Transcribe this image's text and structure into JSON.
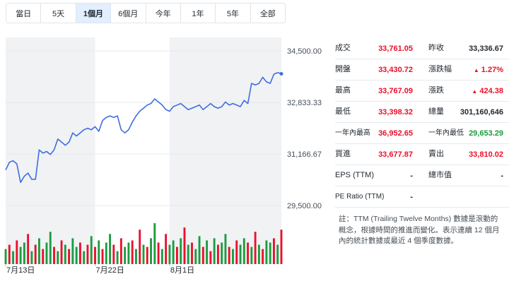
{
  "range_tabs": [
    "當日",
    "5天",
    "1個月",
    "6個月",
    "今年",
    "1年",
    "5年",
    "全部"
  ],
  "active_tab_index": 2,
  "chart_data": {
    "type": "line",
    "ylim": [
      29000,
      34800
    ],
    "y_ticks": [
      "34,500.00",
      "32,833.33",
      "31,166.67",
      "29,500.00"
    ],
    "y_tick_values": [
      34500,
      32833.33,
      31166.67,
      29500
    ],
    "x_labels": [
      "7月13日",
      "7月22日",
      "8月1日"
    ],
    "x_label_index": [
      0,
      24,
      44
    ],
    "price": [
      30650,
      30900,
      30950,
      30850,
      30250,
      30450,
      30550,
      30350,
      30350,
      31300,
      31200,
      31250,
      31150,
      31300,
      31650,
      31550,
      31450,
      31550,
      31850,
      31750,
      31850,
      31950,
      32000,
      31950,
      32050,
      31900,
      32250,
      32350,
      32400,
      32350,
      32400,
      31950,
      31850,
      31950,
      32200,
      32400,
      32550,
      32650,
      32750,
      32800,
      32950,
      32850,
      32750,
      32600,
      32550,
      32700,
      32750,
      32800,
      32700,
      32600,
      32650,
      32700,
      32750,
      32600,
      32700,
      32800,
      32700,
      32650,
      32700,
      32850,
      32750,
      32800,
      32750,
      32700,
      32900,
      32800,
      33450,
      33400,
      33450,
      33650,
      33500,
      33450,
      33750,
      33800,
      33761
    ],
    "volume": [
      0.35,
      0.45,
      0.3,
      0.55,
      0.4,
      0.5,
      0.7,
      0.3,
      0.45,
      0.6,
      0.35,
      0.5,
      0.75,
      0.4,
      0.3,
      0.55,
      0.45,
      0.35,
      0.6,
      0.4,
      0.5,
      0.3,
      0.45,
      0.65,
      0.4,
      0.55,
      0.35,
      0.5,
      0.7,
      0.45,
      0.3,
      0.6,
      0.4,
      0.5,
      0.55,
      0.35,
      0.8,
      0.45,
      0.4,
      0.6,
      0.95,
      0.5,
      0.35,
      0.7,
      0.45,
      0.55,
      0.4,
      0.6,
      0.85,
      0.45,
      0.5,
      0.35,
      0.65,
      0.4,
      0.55,
      0.3,
      0.6,
      0.45,
      0.5,
      0.7,
      0.4,
      0.35,
      0.55,
      0.45,
      0.6,
      0.5,
      0.4,
      0.75,
      0.45,
      0.35,
      0.55,
      0.5,
      0.6,
      0.45,
      0.8
    ],
    "volume_up": [
      true,
      false,
      true,
      false,
      true,
      true,
      false,
      true,
      false,
      true,
      false,
      true,
      true,
      false,
      true,
      false,
      true,
      false,
      true,
      true,
      false,
      true,
      false,
      true,
      false,
      true,
      false,
      true,
      true,
      false,
      true,
      false,
      true,
      true,
      false,
      true,
      false,
      true,
      false,
      true,
      true,
      false,
      true,
      false,
      true,
      true,
      false,
      true,
      false,
      true,
      false,
      true,
      true,
      false,
      true,
      false,
      true,
      false,
      true,
      true,
      false,
      true,
      false,
      true,
      true,
      false,
      true,
      false,
      true,
      false,
      true,
      true,
      false,
      true,
      false
    ],
    "colors": {
      "line": "#3f6de0",
      "up": "#1a9c3e",
      "down": "#eb0f29",
      "band": "#f0f2f4"
    }
  },
  "stats": {
    "rows": [
      {
        "l_label": "成交",
        "l_value": "33,761.05",
        "l_color": "red",
        "r_label": "昨收",
        "r_value": "33,336.67",
        "r_color": "black"
      },
      {
        "l_label": "開盤",
        "l_value": "33,430.72",
        "l_color": "red",
        "r_label": "漲跌幅",
        "r_value": "1.27%",
        "r_color": "red",
        "r_arrow": true
      },
      {
        "l_label": "最高",
        "l_value": "33,767.09",
        "l_color": "red",
        "r_label": "漲跌",
        "r_value": "424.38",
        "r_color": "red",
        "r_arrow": true
      },
      {
        "l_label": "最低",
        "l_value": "33,398.32",
        "l_color": "red",
        "r_label": "總量",
        "r_value": "301,160,646",
        "r_color": "black"
      },
      {
        "l_label": "一年內最高",
        "l_value": "36,952.65",
        "l_color": "red",
        "r_label": "一年內最低",
        "r_value": "29,653.29",
        "r_color": "green",
        "tall": true
      },
      {
        "l_label": "買進",
        "l_value": "33,677.87",
        "l_color": "red",
        "r_label": "賣出",
        "r_value": "33,810.02",
        "r_color": "red"
      },
      {
        "l_label": "EPS (TTM)",
        "l_value": "-",
        "l_color": "black",
        "r_label": "總市值",
        "r_value": "-",
        "r_color": "black"
      },
      {
        "l_label": "PE Ratio (TTM)",
        "l_value": "-",
        "l_color": "black",
        "r_label": "",
        "r_value": "",
        "r_color": "black",
        "tall": true
      }
    ],
    "arrow_glyph": "▲"
  },
  "note": "註：TTM (Trailing Twelve Months) 數據是滾動的概念，根據時間的推進而變化。表示連續 12 個月內的統計數據或最近 4 個季度數據。"
}
